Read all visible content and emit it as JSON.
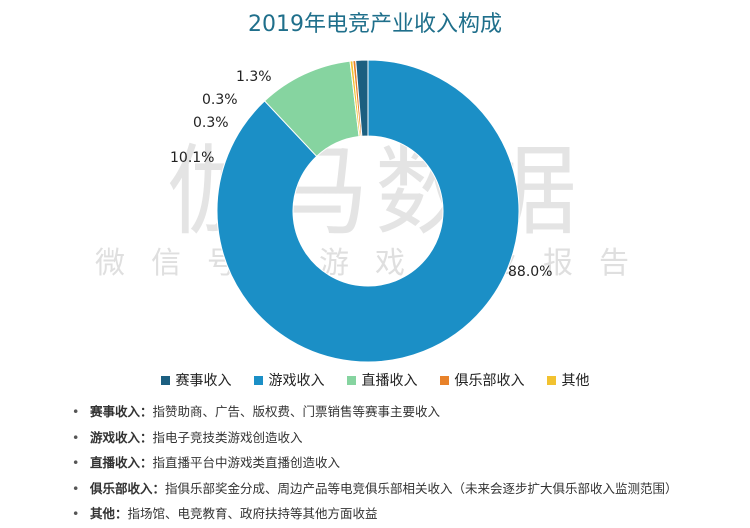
{
  "title": "2019年电竞产业收入构成",
  "watermark": {
    "main": "伽马数据",
    "sub": "微信号：游戏产业报告"
  },
  "chart_data": {
    "type": "pie",
    "donut": true,
    "title": "2019年电竞产业收入构成",
    "categories": [
      "赛事收入",
      "游戏收入",
      "直播收入",
      "俱乐部收入",
      "其他"
    ],
    "values": [
      1.3,
      88.0,
      10.1,
      0.3,
      0.3
    ],
    "value_labels": [
      "1.3%",
      "88.0%",
      "10.1%",
      "0.3%",
      "0.3%"
    ],
    "colors": [
      "#1c5f80",
      "#1b8fc6",
      "#86d4a0",
      "#e8822a",
      "#f2c230"
    ],
    "legend_position": "bottom"
  },
  "legend": [
    {
      "label": "赛事收入",
      "color": "#1c5f80"
    },
    {
      "label": "游戏收入",
      "color": "#1b8fc6"
    },
    {
      "label": "直播收入",
      "color": "#86d4a0"
    },
    {
      "label": "俱乐部收入",
      "color": "#e8822a"
    },
    {
      "label": "其他",
      "color": "#f2c230"
    }
  ],
  "notes": [
    {
      "term": "赛事收入：",
      "text": "指赞助商、广告、版权费、门票销售等赛事主要收入"
    },
    {
      "term": "游戏收入：",
      "text": "指电子竞技类游戏创造收入"
    },
    {
      "term": "直播收入：",
      "text": "指直播平台中游戏类直播创造收入"
    },
    {
      "term": "俱乐部收入：",
      "text": "指俱乐部奖金分成、周边产品等电竞俱乐部相关收入（未来会逐步扩大俱乐部收入监测范围）"
    },
    {
      "term": "其他：",
      "text": "指场馆、电竞教育、政府扶持等其他方面收益"
    }
  ],
  "bullet": "•"
}
